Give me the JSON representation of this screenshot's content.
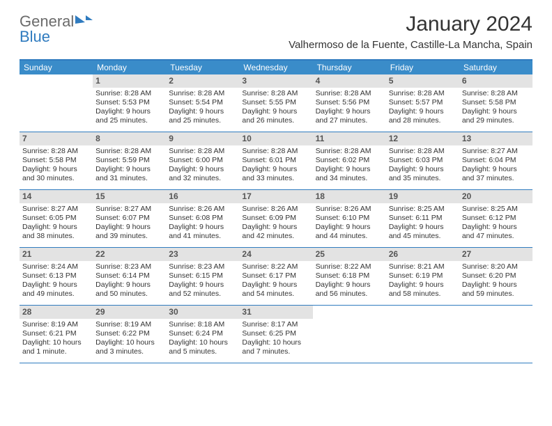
{
  "logo": {
    "text_gray": "General",
    "text_blue": "Blue"
  },
  "title": "January 2024",
  "location": "Valhermoso de la Fuente, Castille-La Mancha, Spain",
  "weekdays": [
    "Sunday",
    "Monday",
    "Tuesday",
    "Wednesday",
    "Thursday",
    "Friday",
    "Saturday"
  ],
  "colors": {
    "header_bar": "#3a8cc9",
    "accent_rule": "#2f7bbf",
    "daynum_bg": "#e3e3e3",
    "text": "#333333",
    "logo_gray": "#6b6b6b"
  },
  "typography": {
    "title_fontsize": 30,
    "location_fontsize": 15,
    "weekday_fontsize": 12,
    "daynum_fontsize": 12,
    "body_fontsize": 10.5
  },
  "weeks": [
    [
      {
        "empty": true
      },
      {
        "n": "1",
        "sr": "Sunrise: 8:28 AM",
        "ss": "Sunset: 5:53 PM",
        "dl": "Daylight: 9 hours and 25 minutes."
      },
      {
        "n": "2",
        "sr": "Sunrise: 8:28 AM",
        "ss": "Sunset: 5:54 PM",
        "dl": "Daylight: 9 hours and 25 minutes."
      },
      {
        "n": "3",
        "sr": "Sunrise: 8:28 AM",
        "ss": "Sunset: 5:55 PM",
        "dl": "Daylight: 9 hours and 26 minutes."
      },
      {
        "n": "4",
        "sr": "Sunrise: 8:28 AM",
        "ss": "Sunset: 5:56 PM",
        "dl": "Daylight: 9 hours and 27 minutes."
      },
      {
        "n": "5",
        "sr": "Sunrise: 8:28 AM",
        "ss": "Sunset: 5:57 PM",
        "dl": "Daylight: 9 hours and 28 minutes."
      },
      {
        "n": "6",
        "sr": "Sunrise: 8:28 AM",
        "ss": "Sunset: 5:58 PM",
        "dl": "Daylight: 9 hours and 29 minutes."
      }
    ],
    [
      {
        "n": "7",
        "sr": "Sunrise: 8:28 AM",
        "ss": "Sunset: 5:58 PM",
        "dl": "Daylight: 9 hours and 30 minutes."
      },
      {
        "n": "8",
        "sr": "Sunrise: 8:28 AM",
        "ss": "Sunset: 5:59 PM",
        "dl": "Daylight: 9 hours and 31 minutes."
      },
      {
        "n": "9",
        "sr": "Sunrise: 8:28 AM",
        "ss": "Sunset: 6:00 PM",
        "dl": "Daylight: 9 hours and 32 minutes."
      },
      {
        "n": "10",
        "sr": "Sunrise: 8:28 AM",
        "ss": "Sunset: 6:01 PM",
        "dl": "Daylight: 9 hours and 33 minutes."
      },
      {
        "n": "11",
        "sr": "Sunrise: 8:28 AM",
        "ss": "Sunset: 6:02 PM",
        "dl": "Daylight: 9 hours and 34 minutes."
      },
      {
        "n": "12",
        "sr": "Sunrise: 8:28 AM",
        "ss": "Sunset: 6:03 PM",
        "dl": "Daylight: 9 hours and 35 minutes."
      },
      {
        "n": "13",
        "sr": "Sunrise: 8:27 AM",
        "ss": "Sunset: 6:04 PM",
        "dl": "Daylight: 9 hours and 37 minutes."
      }
    ],
    [
      {
        "n": "14",
        "sr": "Sunrise: 8:27 AM",
        "ss": "Sunset: 6:05 PM",
        "dl": "Daylight: 9 hours and 38 minutes."
      },
      {
        "n": "15",
        "sr": "Sunrise: 8:27 AM",
        "ss": "Sunset: 6:07 PM",
        "dl": "Daylight: 9 hours and 39 minutes."
      },
      {
        "n": "16",
        "sr": "Sunrise: 8:26 AM",
        "ss": "Sunset: 6:08 PM",
        "dl": "Daylight: 9 hours and 41 minutes."
      },
      {
        "n": "17",
        "sr": "Sunrise: 8:26 AM",
        "ss": "Sunset: 6:09 PM",
        "dl": "Daylight: 9 hours and 42 minutes."
      },
      {
        "n": "18",
        "sr": "Sunrise: 8:26 AM",
        "ss": "Sunset: 6:10 PM",
        "dl": "Daylight: 9 hours and 44 minutes."
      },
      {
        "n": "19",
        "sr": "Sunrise: 8:25 AM",
        "ss": "Sunset: 6:11 PM",
        "dl": "Daylight: 9 hours and 45 minutes."
      },
      {
        "n": "20",
        "sr": "Sunrise: 8:25 AM",
        "ss": "Sunset: 6:12 PM",
        "dl": "Daylight: 9 hours and 47 minutes."
      }
    ],
    [
      {
        "n": "21",
        "sr": "Sunrise: 8:24 AM",
        "ss": "Sunset: 6:13 PM",
        "dl": "Daylight: 9 hours and 49 minutes."
      },
      {
        "n": "22",
        "sr": "Sunrise: 8:23 AM",
        "ss": "Sunset: 6:14 PM",
        "dl": "Daylight: 9 hours and 50 minutes."
      },
      {
        "n": "23",
        "sr": "Sunrise: 8:23 AM",
        "ss": "Sunset: 6:15 PM",
        "dl": "Daylight: 9 hours and 52 minutes."
      },
      {
        "n": "24",
        "sr": "Sunrise: 8:22 AM",
        "ss": "Sunset: 6:17 PM",
        "dl": "Daylight: 9 hours and 54 minutes."
      },
      {
        "n": "25",
        "sr": "Sunrise: 8:22 AM",
        "ss": "Sunset: 6:18 PM",
        "dl": "Daylight: 9 hours and 56 minutes."
      },
      {
        "n": "26",
        "sr": "Sunrise: 8:21 AM",
        "ss": "Sunset: 6:19 PM",
        "dl": "Daylight: 9 hours and 58 minutes."
      },
      {
        "n": "27",
        "sr": "Sunrise: 8:20 AM",
        "ss": "Sunset: 6:20 PM",
        "dl": "Daylight: 9 hours and 59 minutes."
      }
    ],
    [
      {
        "n": "28",
        "sr": "Sunrise: 8:19 AM",
        "ss": "Sunset: 6:21 PM",
        "dl": "Daylight: 10 hours and 1 minute."
      },
      {
        "n": "29",
        "sr": "Sunrise: 8:19 AM",
        "ss": "Sunset: 6:22 PM",
        "dl": "Daylight: 10 hours and 3 minutes."
      },
      {
        "n": "30",
        "sr": "Sunrise: 8:18 AM",
        "ss": "Sunset: 6:24 PM",
        "dl": "Daylight: 10 hours and 5 minutes."
      },
      {
        "n": "31",
        "sr": "Sunrise: 8:17 AM",
        "ss": "Sunset: 6:25 PM",
        "dl": "Daylight: 10 hours and 7 minutes."
      },
      {
        "empty": true
      },
      {
        "empty": true
      },
      {
        "empty": true
      }
    ]
  ]
}
